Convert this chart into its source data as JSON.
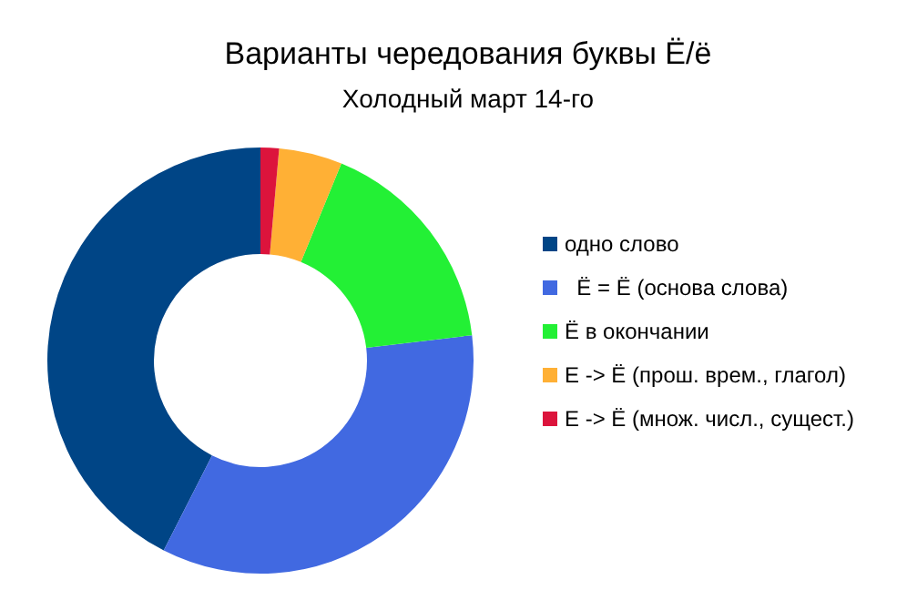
{
  "chart_data": {
    "type": "donut",
    "title": "Варианты чередования буквы Ё/ё",
    "subtitle": "Холодный март 14-го",
    "categories": [
      "одно слово",
      "  Ё = Ё (основа слова)",
      "Ё в окончании",
      "Е -> Ё (прош. врем., глагол)",
      "Е -> Ё (множ. числ., сущест.)"
    ],
    "values": [
      42.5,
      34.4,
      16.9,
      4.8,
      1.4
    ],
    "colors": [
      "#004586",
      "#4169e1",
      "#23f035",
      "#ffb035",
      "#dc143c"
    ],
    "legend": "right"
  }
}
